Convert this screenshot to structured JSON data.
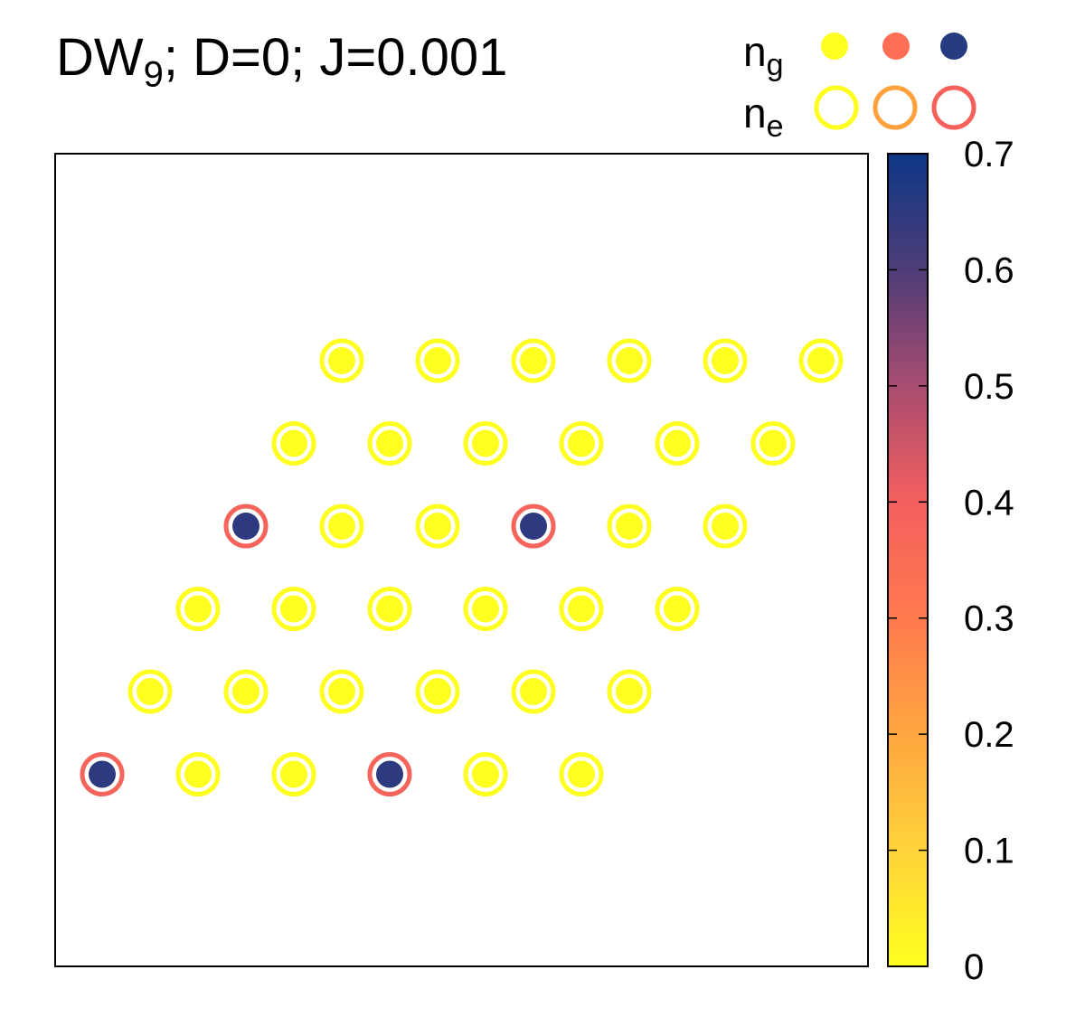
{
  "title": {
    "main": "DW",
    "sub": "9",
    "rest": "; D=0; J=0.001"
  },
  "legend": {
    "ng_label": {
      "main": "n",
      "sub": "g"
    },
    "ne_label": {
      "main": "n",
      "sub": "e"
    },
    "ng_colors": [
      "#ffff1f",
      "#ff6e55",
      "#273b80"
    ],
    "ne_colors": [
      "#ffff1f",
      "#ffa23c",
      "#f8605a"
    ]
  },
  "colorbar": {
    "ticks": [
      "0",
      "0.1",
      "0.2",
      "0.3",
      "0.4",
      "0.5",
      "0.6",
      "0.7"
    ],
    "range": [
      0,
      0.7
    ],
    "stops": [
      "#ffff1f",
      "#ffd33a",
      "#ffa640",
      "#ff7a4e",
      "#f45f5e",
      "#a84c70",
      "#4f3d78",
      "#0c3786"
    ]
  },
  "chart_data": {
    "type": "scatter",
    "title": "DW9; D=0; J=0.001",
    "xlabel": "",
    "ylabel": "",
    "colorbar_range": [
      0,
      0.7
    ],
    "grid": false,
    "legend_placement": "top-right",
    "rows": [
      {
        "row": 0,
        "x": [
          3,
          4,
          5,
          6,
          7,
          8
        ],
        "ng": [
          0,
          0,
          0,
          0,
          0,
          0
        ],
        "ne": [
          0,
          0,
          0,
          0,
          0,
          0
        ]
      },
      {
        "row": 1,
        "x": [
          2.5,
          3.5,
          4.5,
          5.5,
          6.5,
          7.5
        ],
        "ng": [
          0,
          0,
          0,
          0,
          0,
          0
        ],
        "ne": [
          0,
          0,
          0,
          0,
          0,
          0
        ]
      },
      {
        "row": 2,
        "x": [
          2,
          3,
          4,
          5,
          6,
          7
        ],
        "ng": [
          0.65,
          0,
          0,
          0.65,
          0,
          0
        ],
        "ne": [
          0.38,
          0,
          0,
          0.38,
          0,
          0
        ]
      },
      {
        "row": 3,
        "x": [
          1.5,
          2.5,
          3.5,
          4.5,
          5.5,
          6.5
        ],
        "ng": [
          0,
          0,
          0,
          0,
          0,
          0
        ],
        "ne": [
          0,
          0,
          0,
          0,
          0,
          0
        ]
      },
      {
        "row": 4,
        "x": [
          1,
          2,
          3,
          4,
          5,
          6
        ],
        "ng": [
          0,
          0,
          0,
          0,
          0,
          0
        ],
        "ne": [
          0,
          0,
          0,
          0,
          0,
          0
        ]
      },
      {
        "row": 5,
        "x": [
          0.5,
          1.5,
          2.5,
          3.5,
          4.5,
          5.5
        ],
        "ng": [
          0.65,
          0,
          0,
          0.65,
          0,
          0
        ],
        "ne": [
          0.38,
          0,
          0,
          0.38,
          0,
          0
        ]
      }
    ]
  }
}
